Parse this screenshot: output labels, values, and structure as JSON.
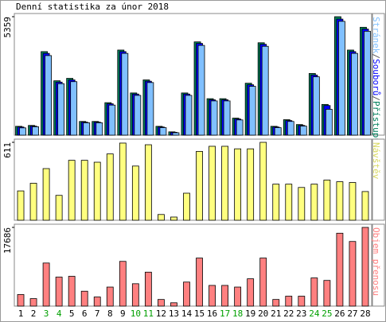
{
  "chart_data": [
    {
      "type": "bar",
      "title": "Denní statistika za únor 2018",
      "ylim": [
        0,
        5359
      ],
      "yticks": [
        5359
      ],
      "legend_separator": "/",
      "series": [
        {
          "name": "Přístupů",
          "color": "#00805c",
          "values": [
            400,
            440,
            3780,
            2460,
            2570,
            620,
            620,
            1470,
            3850,
            1910,
            2500,
            400,
            150,
            1910,
            4220,
            1650,
            1650,
            770,
            2350,
            4180,
            400,
            700,
            480,
            2790,
            1390,
            5359,
            3850,
            4880
          ]
        },
        {
          "name": "Souborů",
          "color": "#0000ff",
          "values": [
            370,
            410,
            3700,
            2400,
            2500,
            590,
            590,
            1420,
            3780,
            1860,
            2440,
            370,
            130,
            1860,
            4150,
            1600,
            1600,
            730,
            2280,
            4110,
            370,
            660,
            440,
            2720,
            1340,
            5250,
            3780,
            4800
          ]
        },
        {
          "name": "Stránek",
          "color": "#80c0ff",
          "values": [
            330,
            380,
            3600,
            2330,
            2420,
            560,
            560,
            1360,
            3700,
            1800,
            2380,
            340,
            110,
            1800,
            4060,
            1550,
            1550,
            690,
            2210,
            4020,
            340,
            620,
            410,
            2640,
            1170,
            5150,
            3700,
            4700
          ]
        }
      ],
      "legend_order": [
        2,
        1,
        0
      ]
    },
    {
      "type": "bar",
      "ylim": [
        0,
        611
      ],
      "yticks": [
        611
      ],
      "series": [
        {
          "name": "Návštěv",
          "color": "#ffff80",
          "values": [
            230,
            290,
            405,
            195,
            470,
            470,
            455,
            520,
            605,
            425,
            592,
            45,
            25,
            212,
            540,
            580,
            580,
            560,
            560,
            611,
            283,
            283,
            257,
            283,
            315,
            302,
            296,
            225
          ]
        }
      ]
    },
    {
      "type": "bar",
      "ylim": [
        0,
        17686
      ],
      "yticks": [
        17686
      ],
      "categories": [
        "1",
        "2",
        "3",
        "4",
        "5",
        "6",
        "7",
        "8",
        "9",
        "10",
        "11",
        "12",
        "13",
        "14",
        "15",
        "16",
        "17",
        "18",
        "19",
        "20",
        "21",
        "22",
        "23",
        "24",
        "25",
        "26",
        "27",
        "28"
      ],
      "category_colors": [
        "#000",
        "#000",
        "#00a000",
        "#00a000",
        "#000",
        "#000",
        "#000",
        "#000",
        "#000",
        "#00a000",
        "#00a000",
        "#000",
        "#000",
        "#000",
        "#000",
        "#000",
        "#00a000",
        "#00a000",
        "#000",
        "#000",
        "#000",
        "#000",
        "#000",
        "#00a000",
        "#00a000",
        "#000",
        "#000",
        "#000"
      ],
      "series": [
        {
          "name": "Objem přenosu",
          "color": "#ff8080",
          "values": [
            2600,
            1680,
            9680,
            6520,
            6700,
            3350,
            2050,
            4280,
            10050,
            5030,
            7630,
            1490,
            750,
            5400,
            10800,
            4650,
            4650,
            4280,
            6140,
            10800,
            1490,
            2230,
            2230,
            6330,
            5770,
            16380,
            14520,
            17686
          ]
        }
      ]
    }
  ]
}
